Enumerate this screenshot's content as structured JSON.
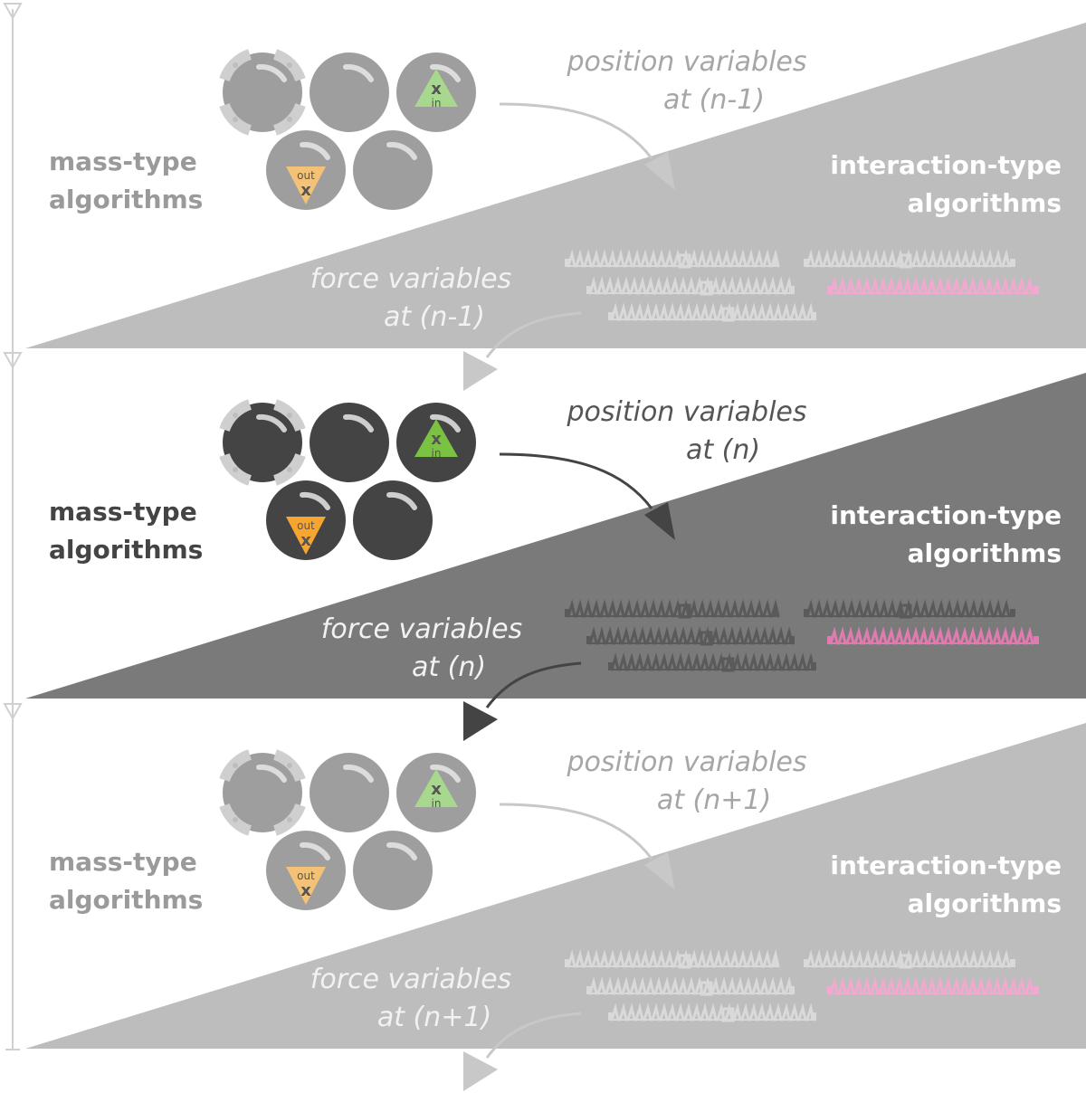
{
  "timesteps": [
    {
      "id": "n-1",
      "state": "inactive",
      "mass_label": [
        "mass-type",
        "algorithms"
      ],
      "interaction_label": [
        "interaction-type",
        "algorithms"
      ],
      "position_label": [
        "position variables",
        "at (n-1)"
      ],
      "force_label": [
        "force variables",
        "at (n-1)"
      ]
    },
    {
      "id": "n",
      "state": "active",
      "mass_label": [
        "mass-type",
        "algorithms"
      ],
      "interaction_label": [
        "interaction-type",
        "algorithms"
      ],
      "position_label": [
        "position variables",
        "at (n)"
      ],
      "force_label": [
        "force variables",
        "at (n)"
      ]
    },
    {
      "id": "n+1",
      "state": "inactive",
      "mass_label": [
        "mass-type",
        "algorithms"
      ],
      "interaction_label": [
        "interaction-type",
        "algorithms"
      ],
      "position_label": [
        "position variables",
        "at (n+1)"
      ],
      "force_label": [
        "force variables",
        "at (n+1)"
      ]
    }
  ],
  "glyphs": {
    "input_symbol": "x",
    "input_text": "in",
    "output_symbol": "x",
    "output_text": "out"
  },
  "colors": {
    "inactive": {
      "wedge": "#bdbdbd",
      "mass_ball": "#9e9e9e",
      "mass_text": "#9a9a9a",
      "var_text_pos": "#a6a6a6",
      "var_text_force": "#f2f2f2",
      "arrow": "#c8c8c8",
      "in_tri": "#a8d88e",
      "out_tri": "#f3c277",
      "spring": "#d9d9d9",
      "pink": "#f2a9cf"
    },
    "active": {
      "wedge": "#7a7a7a",
      "mass_ball": "#444444",
      "mass_text": "#444444",
      "var_text_pos": "#555555",
      "var_text_force": "#f2f2f2",
      "arrow": "#444444",
      "in_tri": "#7cc242",
      "out_tri": "#f7a531",
      "spring": "#5a5a5a",
      "pink": "#e07bb0"
    }
  }
}
